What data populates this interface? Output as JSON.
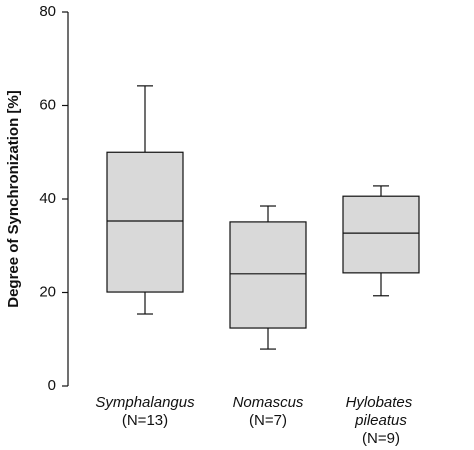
{
  "chart_data": {
    "type": "box",
    "y_label": "Degree of Synchronization [%]",
    "categories": [
      "Symphalangus",
      "Nomascus",
      "Hylobates pileatus"
    ],
    "n_labels": [
      "(N=13)",
      "(N=7)",
      "(N=9)"
    ],
    "whisker_low": [
      15.4,
      7.9,
      19.3
    ],
    "q1": [
      20.1,
      12.4,
      24.2
    ],
    "median": [
      35.3,
      24.0,
      32.7
    ],
    "q3": [
      50.0,
      35.1,
      40.6
    ],
    "whisker_high": [
      64.2,
      38.5,
      42.8
    ],
    "color": "#d9d9d9",
    "ylim": [
      0,
      80
    ],
    "yticks": [
      0,
      20,
      40,
      60,
      80
    ]
  }
}
